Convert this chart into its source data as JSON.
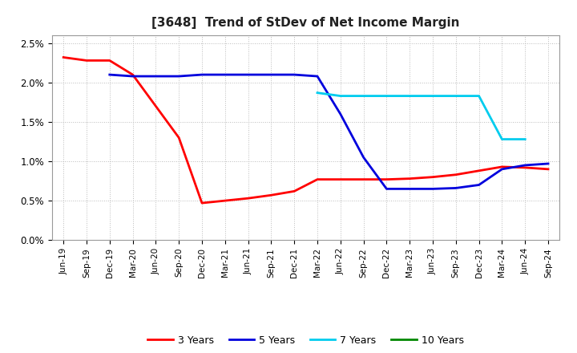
{
  "title": "[3648]  Trend of StDev of Net Income Margin",
  "background_color": "#ffffff",
  "grid_color": "#bbbbbb",
  "plot_bg_color": "#ffffff",
  "x_labels": [
    "Jun-19",
    "Sep-19",
    "Dec-19",
    "Mar-20",
    "Jun-20",
    "Sep-20",
    "Dec-20",
    "Mar-21",
    "Jun-21",
    "Sep-21",
    "Dec-21",
    "Mar-22",
    "Jun-22",
    "Sep-22",
    "Dec-22",
    "Mar-23",
    "Jun-23",
    "Sep-23",
    "Dec-23",
    "Mar-24",
    "Jun-24",
    "Sep-24"
  ],
  "series": {
    "3 Years": {
      "color": "#ff0000",
      "data_x": [
        0,
        1,
        2,
        3,
        4,
        5,
        6,
        7,
        8,
        9,
        10,
        11,
        12,
        13,
        14,
        15,
        16,
        17,
        18,
        19,
        20,
        21
      ],
      "data_y": [
        0.0232,
        0.0228,
        0.0228,
        0.021,
        0.017,
        0.013,
        0.0047,
        0.005,
        0.0053,
        0.0057,
        0.0062,
        0.0077,
        0.0077,
        0.0077,
        0.0077,
        0.0078,
        0.008,
        0.0083,
        0.0088,
        0.0093,
        0.0092,
        0.009
      ]
    },
    "5 Years": {
      "color": "#0000dd",
      "data_x": [
        2,
        3,
        4,
        5,
        6,
        7,
        8,
        9,
        10,
        11,
        12,
        13,
        14,
        15,
        16,
        17,
        18,
        19,
        20,
        21
      ],
      "data_y": [
        0.021,
        0.0208,
        0.0208,
        0.0208,
        0.021,
        0.021,
        0.021,
        0.021,
        0.021,
        0.0208,
        0.016,
        0.0105,
        0.0065,
        0.0065,
        0.0065,
        0.0066,
        0.007,
        0.009,
        0.0095,
        0.0097
      ]
    },
    "7 Years": {
      "color": "#00ccee",
      "data_x": [
        11,
        12,
        13,
        14,
        15,
        16,
        17,
        18,
        19,
        20
      ],
      "data_y": [
        0.0187,
        0.0183,
        0.0183,
        0.0183,
        0.0183,
        0.0183,
        0.0183,
        0.0183,
        0.0128,
        0.0128
      ]
    },
    "10 Years": {
      "color": "#008800",
      "data_x": [],
      "data_y": []
    }
  },
  "ylim": [
    0.0,
    0.026
  ],
  "yticks": [
    0.0,
    0.005,
    0.01,
    0.015,
    0.02,
    0.025
  ],
  "ytick_labels": [
    "0.0%",
    "0.5%",
    "1.0%",
    "1.5%",
    "2.0%",
    "2.5%"
  ]
}
